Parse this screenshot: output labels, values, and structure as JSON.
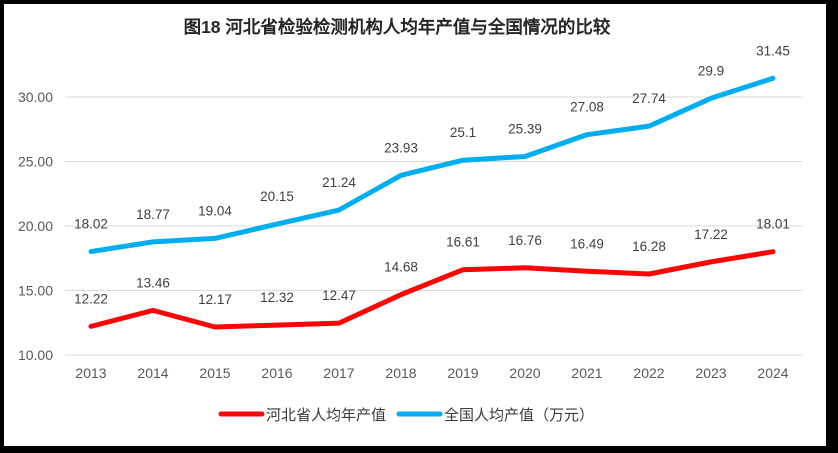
{
  "frame": {
    "background": "#ffffff",
    "border_color": "#000000"
  },
  "chart_data": {
    "type": "line",
    "title": "图18  河北省检验检测机构人均年产值与全国情况的比较",
    "categories": [
      "2013",
      "2014",
      "2015",
      "2016",
      "2017",
      "2018",
      "2019",
      "2020",
      "2021",
      "2022",
      "2023",
      "2024"
    ],
    "series": [
      {
        "name": "河北省人均年产值",
        "color": "#FB0505",
        "values": [
          12.22,
          13.46,
          12.17,
          12.32,
          12.47,
          14.68,
          16.61,
          16.76,
          16.49,
          16.28,
          17.22,
          18.01
        ],
        "labels": [
          "12.22",
          "13.46",
          "12.17",
          "12.32",
          "12.47",
          "14.68",
          "16.61",
          "16.76",
          "16.49",
          "16.28",
          "17.22",
          "18.01"
        ]
      },
      {
        "name": "全国人均产值（万元）",
        "color": "#00AEEF",
        "values": [
          18.02,
          18.77,
          19.04,
          20.15,
          21.24,
          23.93,
          25.1,
          25.39,
          27.08,
          27.74,
          29.9,
          31.45
        ],
        "labels": [
          "18.02",
          "18.77",
          "19.04",
          "20.15",
          "21.24",
          "23.93",
          "25.1",
          "25.39",
          "27.08",
          "27.74",
          "29.9",
          "31.45"
        ]
      }
    ],
    "yticks": [
      {
        "value": 30,
        "label": "30.00"
      },
      {
        "value": 25,
        "label": "25.00"
      },
      {
        "value": 20,
        "label": "20.00"
      },
      {
        "value": 15,
        "label": "15.00"
      },
      {
        "value": 10,
        "label": "10.00"
      }
    ],
    "ylim": [
      10,
      33
    ],
    "grid": true,
    "gridline_color": "#D9D9D9",
    "legend_position": "bottom"
  }
}
